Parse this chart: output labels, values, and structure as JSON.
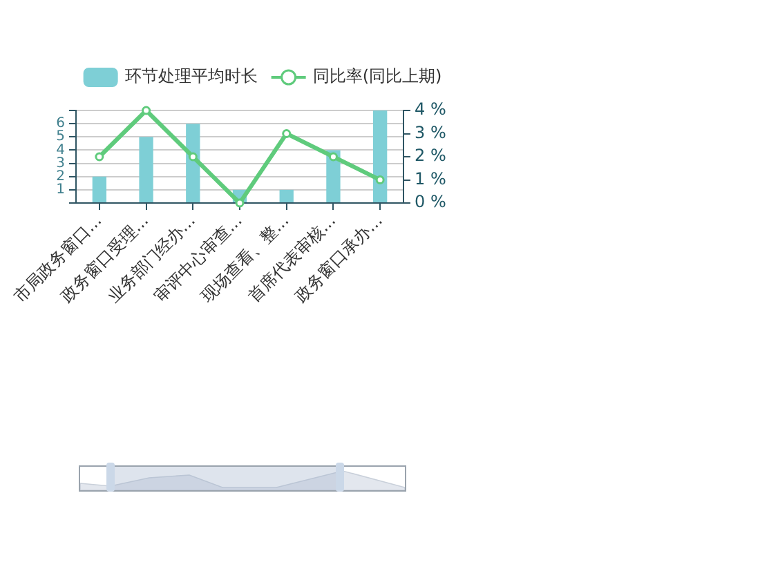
{
  "chart_data": {
    "type": "bar",
    "categories": [
      "市局政务窗口...",
      "政务窗口受理...",
      "业务部门经办...",
      "审评中心审查...",
      "现场查看、整...",
      "首席代表审核...",
      "政务窗口承办..."
    ],
    "series": [
      {
        "name": "环节处理平均时长",
        "color": "#7ecfd6",
        "values": [
          2,
          5,
          6,
          1,
          1,
          4,
          7
        ]
      },
      {
        "name": "同比率(同比上期)",
        "type": "line",
        "axis": "y2",
        "color": "#5fcb7c",
        "values": [
          2,
          4,
          2,
          0,
          3,
          2,
          1
        ]
      }
    ],
    "ylim": [
      0,
      7
    ],
    "yticks": [
      {
        "value": 0,
        "label": null
      },
      1,
      2,
      3,
      4,
      5,
      6,
      {
        "value": 7,
        "label": null
      }
    ],
    "y2lim": [
      0,
      4
    ],
    "y2ticks": [
      {
        "value": 0,
        "label": "0 %"
      },
      {
        "value": 1,
        "label": "1 %"
      },
      {
        "value": 2,
        "label": "2 %"
      },
      {
        "value": 3,
        "label": "3 %"
      },
      {
        "value": 4,
        "label": "4 %"
      }
    ],
    "grid": "y",
    "legend": "top",
    "marker": "circle",
    "line_style": "solid"
  }
}
